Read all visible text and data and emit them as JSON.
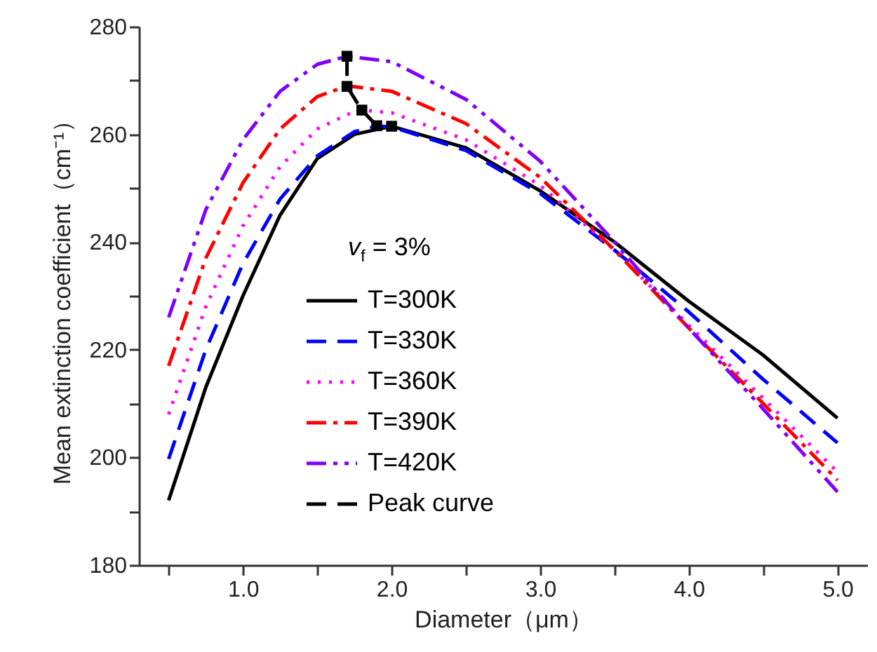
{
  "chart_data": {
    "type": "line",
    "xlabel": "Diameter（μm）",
    "ylabel": "Mean extinction coefficient（cm⁻¹）",
    "legend_title": "v$_{f}$ = 3%",
    "xlim": [
      0.3,
      5.2
    ],
    "xticks": [
      {
        "value": 0.5,
        "label": null
      },
      {
        "value": 1,
        "label": "1.0"
      },
      {
        "value": 1.5,
        "label": null
      },
      {
        "value": 2,
        "label": "2.0"
      },
      {
        "value": 2.5,
        "label": null
      },
      {
        "value": 3,
        "label": "3.0"
      },
      {
        "value": 3.5,
        "label": null
      },
      {
        "value": 4,
        "label": "4.0"
      },
      {
        "value": 4.5,
        "label": null
      },
      {
        "value": 5,
        "label": "5.0"
      }
    ],
    "ylim": [
      180,
      280
    ],
    "yticks": [
      180,
      {
        "value": 190,
        "label": null
      },
      200,
      {
        "value": 210,
        "label": null
      },
      220,
      {
        "value": 230,
        "label": null
      },
      240,
      {
        "value": 250,
        "label": null
      },
      260,
      {
        "value": 270,
        "label": null
      },
      280
    ],
    "grid": false,
    "legend": "center",
    "series": [
      {
        "name": "T=300K",
        "color": "#000000",
        "line_style": "solid",
        "marker": "none",
        "x": [
          0.5,
          0.75,
          1.0,
          1.25,
          1.5,
          1.75,
          2.0,
          2.5,
          3.0,
          3.5,
          4.0,
          4.5,
          5.0
        ],
        "values": [
          192,
          213,
          230,
          245,
          255.5,
          260,
          261.5,
          257.5,
          249.5,
          240,
          229,
          219,
          207.3
        ]
      },
      {
        "name": "T=330K",
        "color": "#0000ff",
        "line_style": "dashed",
        "marker": "none",
        "x": [
          0.5,
          0.75,
          1.0,
          1.25,
          1.5,
          1.75,
          1.9,
          2.0,
          2.5,
          3.0,
          3.5,
          4.0,
          4.5,
          5.0
        ],
        "values": [
          199.7,
          220,
          236,
          248,
          256,
          260.5,
          261.5,
          261.4,
          257,
          249,
          238.5,
          227,
          214.5,
          202.7
        ]
      },
      {
        "name": "T=360K",
        "color": "#ff00ff",
        "line_style": "dotted",
        "marker": "none",
        "x": [
          0.5,
          0.75,
          1.0,
          1.25,
          1.5,
          1.75,
          1.8,
          2.0,
          2.5,
          3.0,
          3.5,
          4.0,
          4.5,
          5.0
        ],
        "values": [
          208,
          228,
          243,
          254,
          261,
          264.3,
          264.5,
          264,
          259,
          250.5,
          238.5,
          224.5,
          211,
          197.3
        ]
      },
      {
        "name": "T=390K",
        "color": "#ff0000",
        "line_style": "dashdot",
        "marker": "none",
        "x": [
          0.5,
          0.75,
          1.0,
          1.25,
          1.5,
          1.7,
          2.0,
          2.5,
          3.0,
          3.5,
          4.0,
          4.5,
          5.0
        ],
        "values": [
          217,
          237,
          251,
          261,
          267,
          269,
          268,
          262,
          252,
          238.5,
          224,
          210,
          195.8
        ]
      },
      {
        "name": "T=420K",
        "color": "#8000ff",
        "line_style": "dashdotdot",
        "marker": "none",
        "x": [
          0.5,
          0.75,
          1.0,
          1.25,
          1.5,
          1.7,
          2.0,
          2.5,
          3.0,
          3.5,
          4.0,
          4.5,
          5.0
        ],
        "values": [
          226,
          246,
          259,
          268,
          273,
          274.5,
          273.5,
          266.5,
          255,
          240,
          224,
          209,
          193.6
        ]
      },
      {
        "name": "Peak curve",
        "color": "#000000",
        "line_style": "dashed",
        "marker": "square",
        "x": [
          1.7,
          1.7,
          1.8,
          1.9,
          2.0
        ],
        "values": [
          274.5,
          268.9,
          264.5,
          261.6,
          261.5
        ]
      }
    ]
  }
}
